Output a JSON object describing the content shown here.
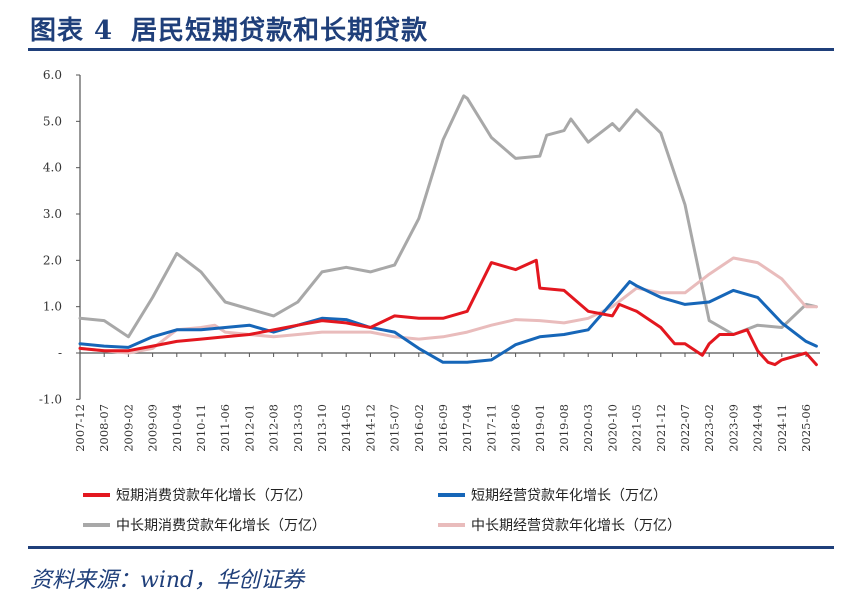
{
  "header": {
    "prefix": "图表",
    "number": "4",
    "title": "居民短期贷款和长期贷款"
  },
  "source": "资料来源：wind，华创证券",
  "chart_data": {
    "type": "line",
    "title": "居民短期贷款和长期贷款",
    "xlabel": "",
    "ylabel": "",
    "ylim": [
      -1.0,
      6.0
    ],
    "yticks": [
      6.0,
      5.0,
      4.0,
      3.0,
      2.0,
      1.0,
      0,
      -1.0
    ],
    "ytick_labels": [
      "6.0",
      "5.0",
      "4.0",
      "3.0",
      "2.0",
      "1.0",
      "-",
      "-1.0"
    ],
    "x_categories": [
      "2007-12",
      "2008-07",
      "2009-02",
      "2009-09",
      "2010-04",
      "2010-11",
      "2011-06",
      "2012-01",
      "2012-08",
      "2013-03",
      "2013-10",
      "2014-05",
      "2014-12",
      "2015-07",
      "2016-02",
      "2016-09",
      "2017-04",
      "2017-11",
      "2018-06",
      "2019-01",
      "2019-08",
      "2020-03",
      "2020-10",
      "2021-05",
      "2021-12",
      "2022-07",
      "2023-02",
      "2023-09",
      "2024-04",
      "2024-11",
      "2025-06"
    ],
    "legend_position": "bottom",
    "grid": false,
    "series": [
      {
        "name": "短期消费贷款年化增长（万亿）",
        "color": "#e3171f",
        "points": [
          [
            "2007-12",
            0.1
          ],
          [
            "2008-07",
            0.05
          ],
          [
            "2009-02",
            0.05
          ],
          [
            "2009-09",
            0.15
          ],
          [
            "2010-04",
            0.25
          ],
          [
            "2010-11",
            0.3
          ],
          [
            "2011-06",
            0.35
          ],
          [
            "2012-01",
            0.4
          ],
          [
            "2012-08",
            0.5
          ],
          [
            "2013-03",
            0.6
          ],
          [
            "2013-10",
            0.7
          ],
          [
            "2014-05",
            0.65
          ],
          [
            "2014-12",
            0.55
          ],
          [
            "2015-07",
            0.8
          ],
          [
            "2016-02",
            0.75
          ],
          [
            "2016-09",
            0.75
          ],
          [
            "2017-04",
            0.9
          ],
          [
            "2017-11",
            1.95
          ],
          [
            "2018-06",
            1.8
          ],
          [
            "2018-12",
            2.0
          ],
          [
            "2019-01",
            1.4
          ],
          [
            "2019-08",
            1.35
          ],
          [
            "2020-03",
            0.9
          ],
          [
            "2020-10",
            0.8
          ],
          [
            "2020-12",
            1.05
          ],
          [
            "2021-05",
            0.9
          ],
          [
            "2021-12",
            0.55
          ],
          [
            "2022-04",
            0.2
          ],
          [
            "2022-07",
            0.2
          ],
          [
            "2022-12",
            -0.05
          ],
          [
            "2023-02",
            0.2
          ],
          [
            "2023-05",
            0.4
          ],
          [
            "2023-09",
            0.4
          ],
          [
            "2024-01",
            0.5
          ],
          [
            "2024-04",
            0.05
          ],
          [
            "2024-07",
            -0.2
          ],
          [
            "2024-09",
            -0.25
          ],
          [
            "2024-11",
            -0.15
          ],
          [
            "2025-06",
            0.0
          ],
          [
            "2025-09",
            -0.25
          ]
        ]
      },
      {
        "name": "短期经营贷款年化增长（万亿）",
        "color": "#1666b8",
        "points": [
          [
            "2007-12",
            0.2
          ],
          [
            "2008-07",
            0.15
          ],
          [
            "2009-02",
            0.12
          ],
          [
            "2009-09",
            0.35
          ],
          [
            "2010-04",
            0.5
          ],
          [
            "2010-11",
            0.5
          ],
          [
            "2011-06",
            0.55
          ],
          [
            "2012-01",
            0.6
          ],
          [
            "2012-08",
            0.45
          ],
          [
            "2013-03",
            0.6
          ],
          [
            "2013-10",
            0.75
          ],
          [
            "2014-05",
            0.72
          ],
          [
            "2014-12",
            0.55
          ],
          [
            "2015-07",
            0.45
          ],
          [
            "2016-02",
            0.1
          ],
          [
            "2016-09",
            -0.2
          ],
          [
            "2017-04",
            -0.2
          ],
          [
            "2017-11",
            -0.15
          ],
          [
            "2018-06",
            0.18
          ],
          [
            "2019-01",
            0.35
          ],
          [
            "2019-08",
            0.4
          ],
          [
            "2020-03",
            0.5
          ],
          [
            "2020-10",
            1.1
          ],
          [
            "2021-03",
            1.54
          ],
          [
            "2021-05",
            1.45
          ],
          [
            "2021-12",
            1.2
          ],
          [
            "2022-07",
            1.05
          ],
          [
            "2023-02",
            1.1
          ],
          [
            "2023-09",
            1.35
          ],
          [
            "2024-04",
            1.2
          ],
          [
            "2024-11",
            0.65
          ],
          [
            "2025-06",
            0.25
          ],
          [
            "2025-09",
            0.15
          ]
        ]
      },
      {
        "name": "中长期消费贷款年化增长（万亿）",
        "color": "#a8a8a8",
        "points": [
          [
            "2007-12",
            0.75
          ],
          [
            "2008-07",
            0.7
          ],
          [
            "2009-02",
            0.35
          ],
          [
            "2009-09",
            1.2
          ],
          [
            "2010-04",
            2.15
          ],
          [
            "2010-11",
            1.75
          ],
          [
            "2011-06",
            1.1
          ],
          [
            "2012-01",
            0.95
          ],
          [
            "2012-08",
            0.8
          ],
          [
            "2013-03",
            1.1
          ],
          [
            "2013-10",
            1.75
          ],
          [
            "2014-05",
            1.85
          ],
          [
            "2014-12",
            1.75
          ],
          [
            "2015-07",
            1.9
          ],
          [
            "2016-02",
            2.9
          ],
          [
            "2016-09",
            4.6
          ],
          [
            "2017-03",
            5.55
          ],
          [
            "2017-04",
            5.5
          ],
          [
            "2017-11",
            4.65
          ],
          [
            "2018-06",
            4.2
          ],
          [
            "2019-01",
            4.25
          ],
          [
            "2019-03",
            4.7
          ],
          [
            "2019-08",
            4.8
          ],
          [
            "2019-10",
            5.05
          ],
          [
            "2020-03",
            4.55
          ],
          [
            "2020-10",
            4.95
          ],
          [
            "2020-12",
            4.8
          ],
          [
            "2021-05",
            5.25
          ],
          [
            "2021-12",
            4.75
          ],
          [
            "2022-07",
            3.2
          ],
          [
            "2023-02",
            0.7
          ],
          [
            "2023-09",
            0.4
          ],
          [
            "2024-04",
            0.6
          ],
          [
            "2024-11",
            0.55
          ],
          [
            "2025-06",
            1.05
          ],
          [
            "2025-09",
            1.0
          ]
        ]
      },
      {
        "name": "中长期经营贷款年化增长（万亿）",
        "color": "#e9bcbc",
        "points": [
          [
            "2007-12",
            0.1
          ],
          [
            "2008-07",
            0.05
          ],
          [
            "2009-02",
            0.0
          ],
          [
            "2009-09",
            0.1
          ],
          [
            "2010-04",
            0.5
          ],
          [
            "2010-11",
            0.55
          ],
          [
            "2011-03",
            0.6
          ],
          [
            "2011-06",
            0.45
          ],
          [
            "2012-01",
            0.4
          ],
          [
            "2012-08",
            0.35
          ],
          [
            "2013-03",
            0.4
          ],
          [
            "2013-10",
            0.45
          ],
          [
            "2014-05",
            0.45
          ],
          [
            "2014-12",
            0.45
          ],
          [
            "2015-07",
            0.35
          ],
          [
            "2016-02",
            0.3
          ],
          [
            "2016-09",
            0.35
          ],
          [
            "2017-04",
            0.45
          ],
          [
            "2017-11",
            0.6
          ],
          [
            "2018-06",
            0.72
          ],
          [
            "2019-01",
            0.7
          ],
          [
            "2019-08",
            0.65
          ],
          [
            "2020-03",
            0.75
          ],
          [
            "2020-10",
            1.0
          ],
          [
            "2021-05",
            1.4
          ],
          [
            "2021-12",
            1.3
          ],
          [
            "2022-07",
            1.3
          ],
          [
            "2023-02",
            1.7
          ],
          [
            "2023-09",
            2.05
          ],
          [
            "2024-04",
            1.95
          ],
          [
            "2024-11",
            1.6
          ],
          [
            "2025-06",
            1.0
          ],
          [
            "2025-09",
            1.0
          ]
        ]
      }
    ]
  }
}
